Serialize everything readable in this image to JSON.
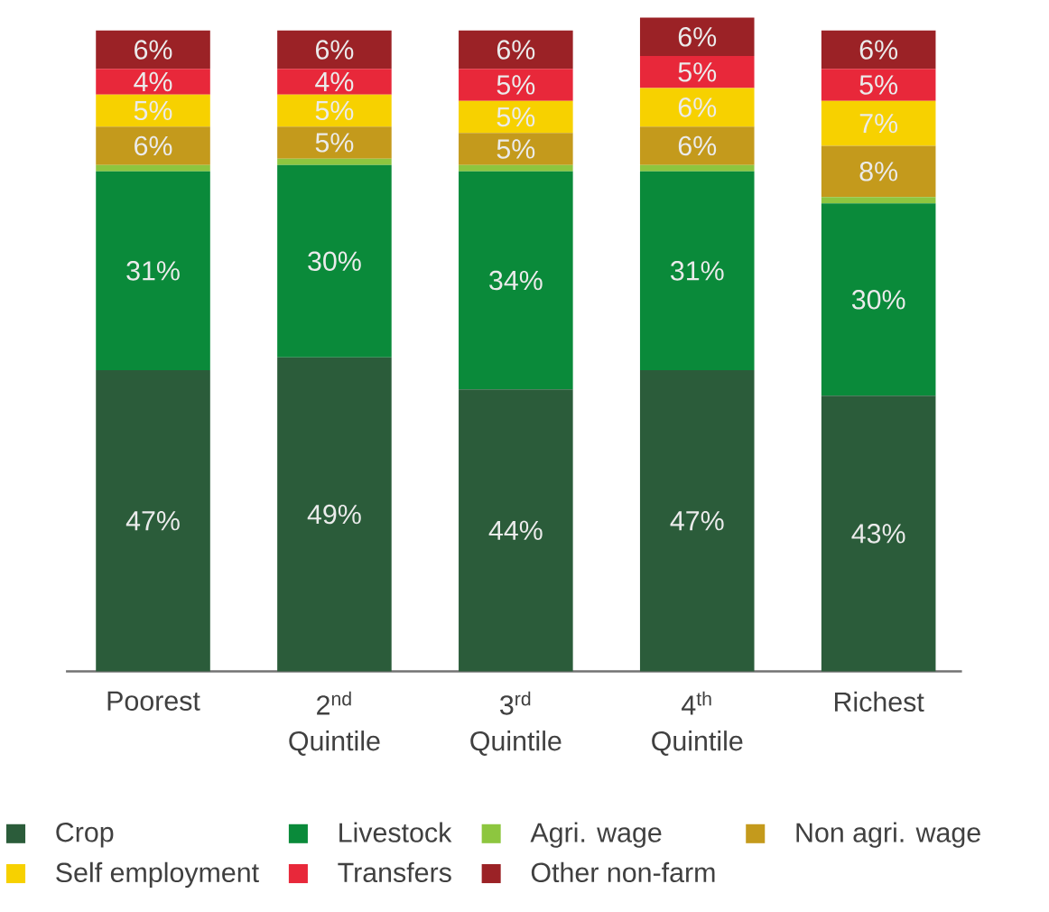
{
  "chart_data": {
    "type": "bar",
    "stacked": true,
    "categories": [
      "Poorest",
      "2$^{nd}$ Quintile",
      "3$^{rd}$ Quintile",
      "4$^{th}$ Quintile",
      "Richest"
    ],
    "legend": "bottom",
    "series": [
      {
        "name": "Crop",
        "color": "#2b5c3a",
        "values": [
          47,
          49,
          44,
          47,
          43
        ],
        "value_labels": [
          "47%",
          "49%",
          "44%",
          "47%",
          "43%"
        ]
      },
      {
        "name": "Livestock",
        "color": "#0a8a3a",
        "values": [
          31,
          30,
          34,
          31,
          30
        ],
        "value_labels": [
          "31%",
          "30%",
          "34%",
          "31%",
          "30%"
        ]
      },
      {
        "name": "Agri. wage",
        "color": "#8dc63f",
        "values": [
          1,
          1,
          1,
          1,
          1
        ],
        "value_labels": [
          null,
          null,
          null,
          null,
          null
        ]
      },
      {
        "name": "Non agri. wage",
        "color": "#c49a1c",
        "values": [
          6,
          5,
          5,
          6,
          8
        ],
        "value_labels": [
          "6%",
          "5%",
          "5%",
          "6%",
          "8%"
        ]
      },
      {
        "name": "Self employment",
        "color": "#f7d100",
        "values": [
          5,
          5,
          5,
          6,
          7
        ],
        "value_labels": [
          "5%",
          "5%",
          "5%",
          "6%",
          "7%"
        ]
      },
      {
        "name": "Transfers",
        "color": "#e8283a",
        "values": [
          4,
          4,
          5,
          5,
          5
        ],
        "value_labels": [
          "4%",
          "4%",
          "5%",
          "5%",
          "5%"
        ]
      },
      {
        "name": "Other non-farm",
        "color": "#9b2226",
        "values": [
          6,
          6,
          6,
          6,
          6
        ],
        "value_labels": [
          "6%",
          "6%",
          "6%",
          "6%",
          "6%"
        ]
      }
    ]
  }
}
